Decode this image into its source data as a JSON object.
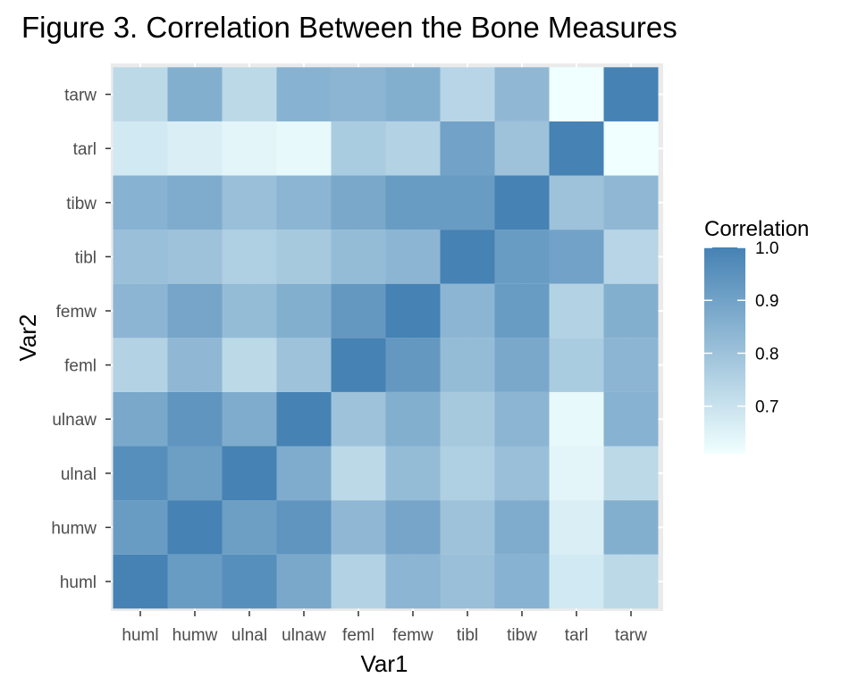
{
  "chart_data": {
    "type": "heatmap",
    "title": "Figure 3. Correlation Between the Bone Measures",
    "xlabel": "Var1",
    "ylabel": "Var2",
    "x_categories": [
      "huml",
      "humw",
      "ulnal",
      "ulnaw",
      "feml",
      "femw",
      "tibl",
      "tibw",
      "tarl",
      "tarw"
    ],
    "y_categories": [
      "huml",
      "humw",
      "ulnal",
      "ulnaw",
      "feml",
      "femw",
      "tibl",
      "tibw",
      "tarl",
      "tarw"
    ],
    "values": [
      [
        1.0,
        0.92,
        0.96,
        0.88,
        0.75,
        0.84,
        0.81,
        0.85,
        0.68,
        0.73
      ],
      [
        0.92,
        1.0,
        0.91,
        0.94,
        0.83,
        0.89,
        0.8,
        0.87,
        0.66,
        0.86
      ],
      [
        0.96,
        0.91,
        1.0,
        0.87,
        0.73,
        0.82,
        0.76,
        0.81,
        0.64,
        0.73
      ],
      [
        0.88,
        0.94,
        0.87,
        1.0,
        0.8,
        0.86,
        0.78,
        0.84,
        0.63,
        0.85
      ],
      [
        0.75,
        0.83,
        0.73,
        0.8,
        1.0,
        0.93,
        0.82,
        0.88,
        0.77,
        0.84
      ],
      [
        0.84,
        0.89,
        0.82,
        0.86,
        0.93,
        1.0,
        0.84,
        0.92,
        0.75,
        0.86
      ],
      [
        0.81,
        0.8,
        0.76,
        0.78,
        0.82,
        0.84,
        1.0,
        0.92,
        0.9,
        0.74
      ],
      [
        0.85,
        0.87,
        0.81,
        0.84,
        0.88,
        0.92,
        0.92,
        1.0,
        0.8,
        0.83
      ],
      [
        0.68,
        0.66,
        0.64,
        0.63,
        0.77,
        0.75,
        0.9,
        0.8,
        1.0,
        0.61
      ],
      [
        0.73,
        0.86,
        0.73,
        0.85,
        0.84,
        0.86,
        0.74,
        0.83,
        0.61,
        1.0
      ]
    ],
    "legend": {
      "title": "Correlation",
      "min": 0.61,
      "max": 1.0,
      "ticks": [
        1.0,
        0.9,
        0.8,
        0.7
      ],
      "tick_labels": [
        "1.0",
        "0.9",
        "0.8",
        "0.7"
      ],
      "low_color": "#f0ffff",
      "high_color": "#4682b4",
      "position": "right"
    },
    "panel_background": "#ebebeb",
    "grid": true
  }
}
